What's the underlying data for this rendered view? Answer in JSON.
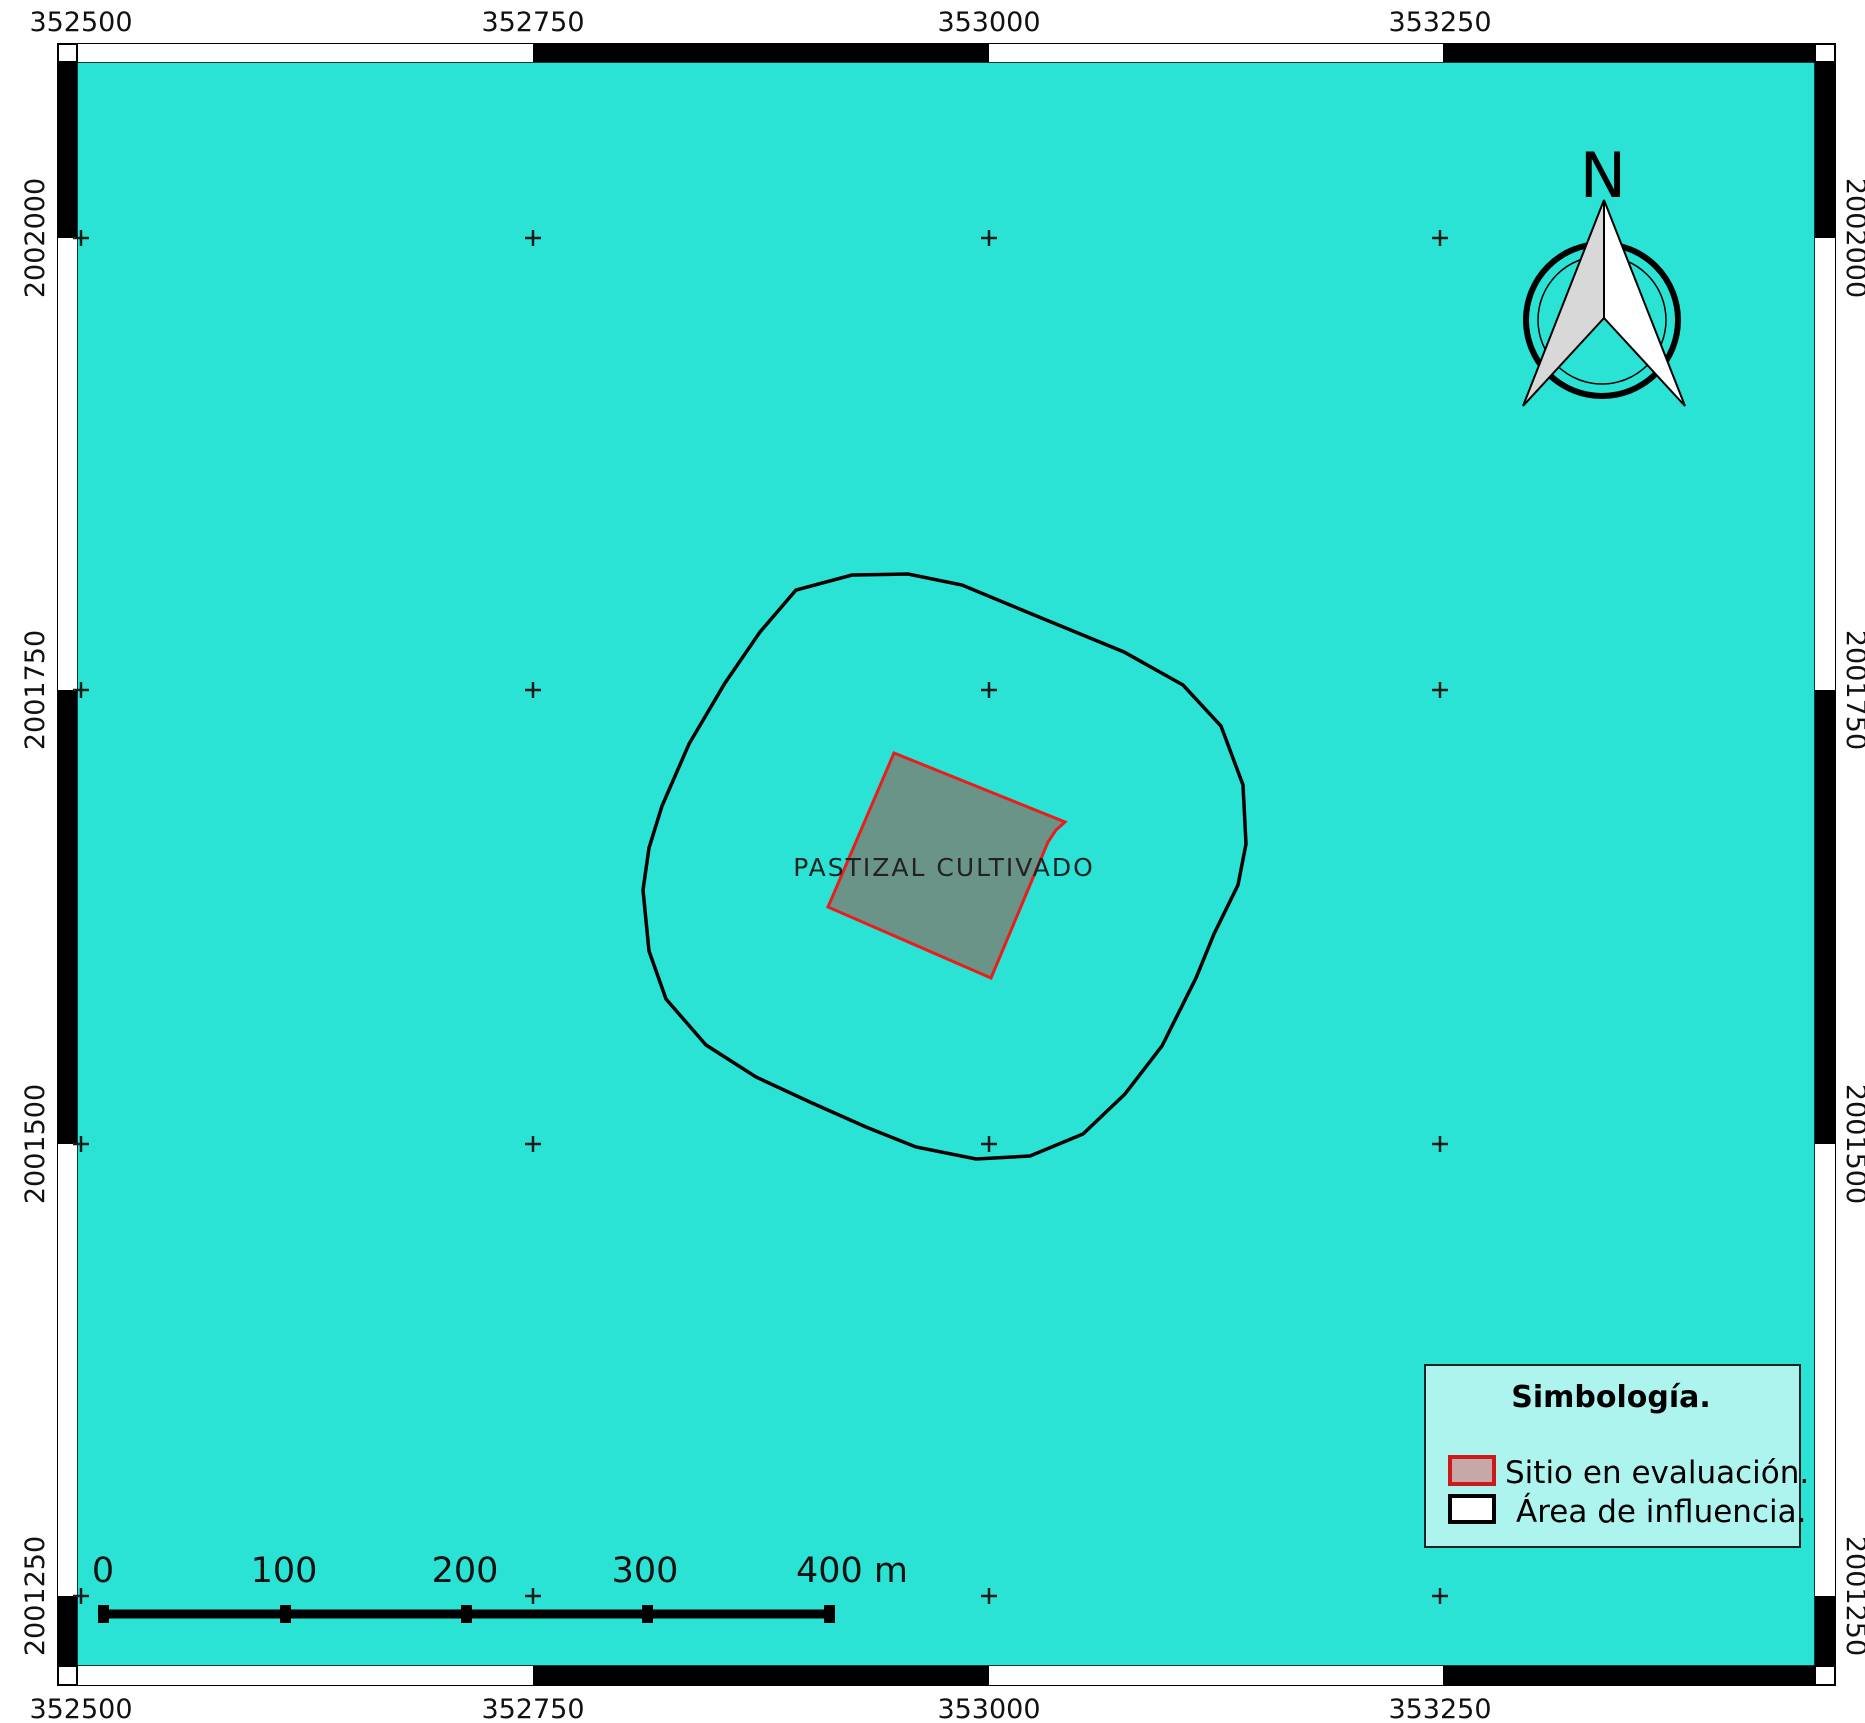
{
  "map": {
    "background_color": "#2ae3d4",
    "x_ticks": [
      "352500",
      "352750",
      "353000",
      "353250"
    ],
    "y_ticks": [
      "2002000",
      "2001750",
      "2001500",
      "2001250"
    ],
    "feature_label": "PASTIZAL CULTIVADO",
    "north_label": "N"
  },
  "scale_bar": {
    "labels": [
      "0",
      "100",
      "200",
      "300",
      "400 m"
    ]
  },
  "legend": {
    "title": "Simbología.",
    "items": [
      {
        "label": "Sitio en evaluación.",
        "fill": "#c6a9a6",
        "stroke": "#cc1a1a"
      },
      {
        "label": "Área de influencia.",
        "fill": "#ffffff",
        "stroke": "#000000"
      }
    ]
  },
  "colors": {
    "site_fill": "#6b9488",
    "site_stroke": "#e81e1e",
    "influence_stroke": "#000000",
    "legend_bg": "#aef4ee"
  }
}
